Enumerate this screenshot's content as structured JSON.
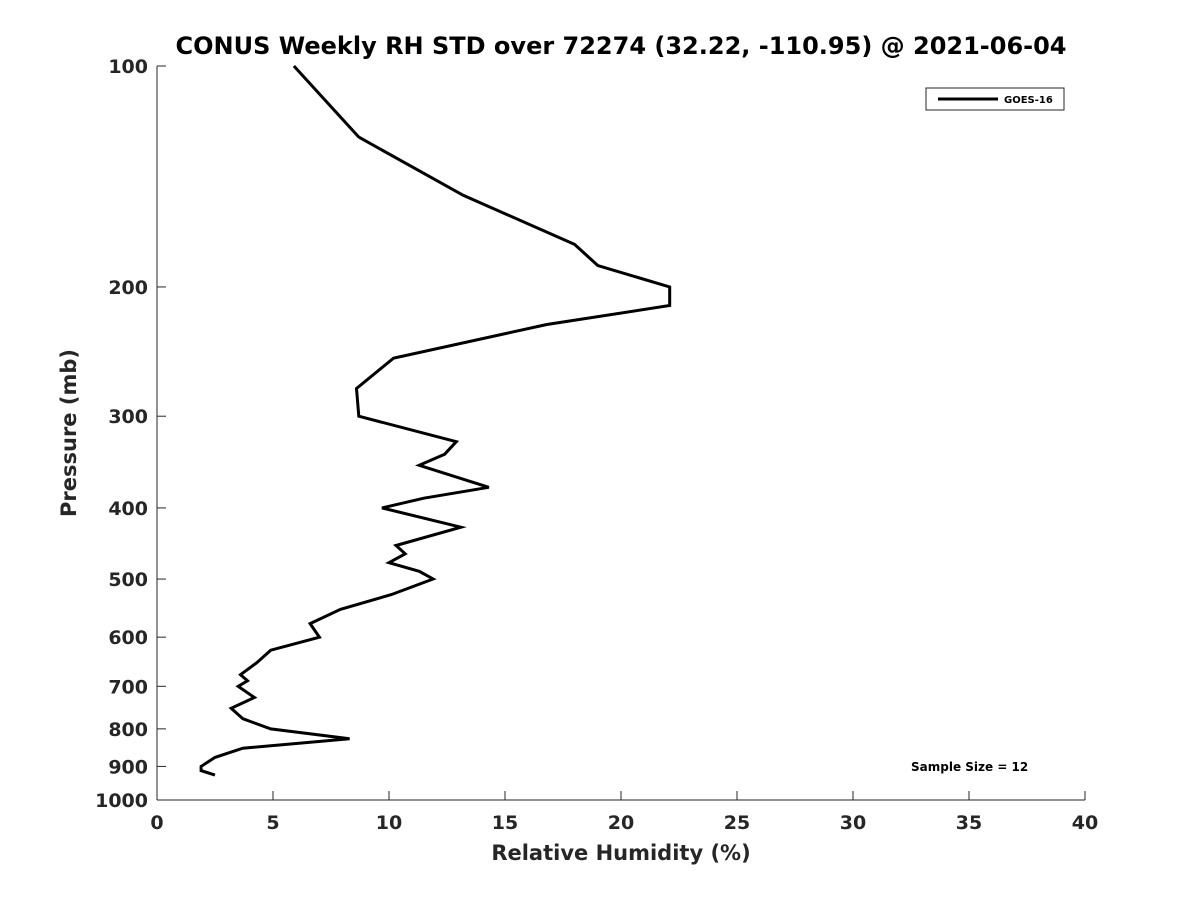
{
  "chart_data": {
    "type": "line",
    "title": "CONUS Weekly RH STD over 72274 (32.22, -110.95) @ 2021-06-04",
    "xlabel": "Relative Humidity (%)",
    "ylabel": "Pressure (mb)",
    "xlim": [
      0,
      40
    ],
    "ylim": [
      1000,
      100
    ],
    "y_scale": "log",
    "y_reversed": true,
    "x_ticks": [
      "0",
      "5",
      "10",
      "15",
      "20",
      "25",
      "30",
      "35",
      "40"
    ],
    "y_ticks": [
      "100",
      "200",
      "300",
      "400",
      "500",
      "600",
      "700",
      "800",
      "900",
      "1000"
    ],
    "grid": false,
    "legend_position": "top-right",
    "annotation": "Sample Size = 12",
    "series": [
      {
        "name": "GOES-16",
        "color": "#000000",
        "points": [
          [
            5.9,
            100
          ],
          [
            8.7,
            125
          ],
          [
            13.2,
            150
          ],
          [
            18.0,
            175
          ],
          [
            19.0,
            187
          ],
          [
            22.1,
            200
          ],
          [
            22.1,
            212
          ],
          [
            16.8,
            225
          ],
          [
            10.2,
            250
          ],
          [
            8.6,
            275
          ],
          [
            8.7,
            300
          ],
          [
            12.9,
            325
          ],
          [
            12.4,
            338
          ],
          [
            11.3,
            350
          ],
          [
            14.3,
            375
          ],
          [
            11.5,
            388
          ],
          [
            9.7,
            400
          ],
          [
            13.1,
            425
          ],
          [
            10.3,
            450
          ],
          [
            10.7,
            462
          ],
          [
            10.0,
            475
          ],
          [
            11.3,
            488
          ],
          [
            11.9,
            500
          ],
          [
            10.1,
            525
          ],
          [
            7.9,
            550
          ],
          [
            6.6,
            575
          ],
          [
            7.0,
            600
          ],
          [
            4.9,
            625
          ],
          [
            4.3,
            650
          ],
          [
            3.6,
            675
          ],
          [
            3.9,
            688
          ],
          [
            3.5,
            700
          ],
          [
            4.2,
            725
          ],
          [
            3.2,
            750
          ],
          [
            3.7,
            775
          ],
          [
            4.9,
            800
          ],
          [
            8.3,
            825
          ],
          [
            3.7,
            850
          ],
          [
            2.5,
            875
          ],
          [
            1.9,
            900
          ],
          [
            1.9,
            912
          ],
          [
            2.5,
            925
          ]
        ]
      }
    ]
  }
}
